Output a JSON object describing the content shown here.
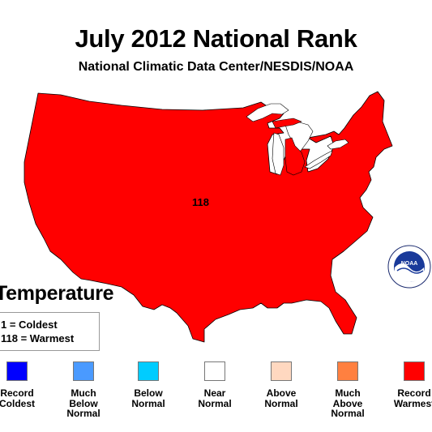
{
  "title": "July 2012 National Rank",
  "subtitle": "National Climatic Data Center/NESDIS/NOAA",
  "map": {
    "region": "Contiguous United States",
    "rank_value": "118",
    "fill_color": "#ff0000"
  },
  "variable_heading": "Temperature",
  "rank_key": {
    "line1": "1 = Coldest",
    "line2": "118 = Warmest"
  },
  "legend": [
    {
      "label": "Record\nColdest",
      "color": "#0000ff"
    },
    {
      "label": "Much\nBelow\nNormal",
      "color": "#4a9aff"
    },
    {
      "label": "Below\nNormal",
      "color": "#00ccff"
    },
    {
      "label": "Near\nNormal",
      "color": "#ffffff"
    },
    {
      "label": "Above\nNormal",
      "color": "#ffd8c0"
    },
    {
      "label": "Much\nAbove\nNormal",
      "color": "#ff8040"
    },
    {
      "label": "Record\nWarmest",
      "color": "#ff0000"
    }
  ],
  "logo": {
    "name": "noaa-logo",
    "text": "NOAA"
  }
}
